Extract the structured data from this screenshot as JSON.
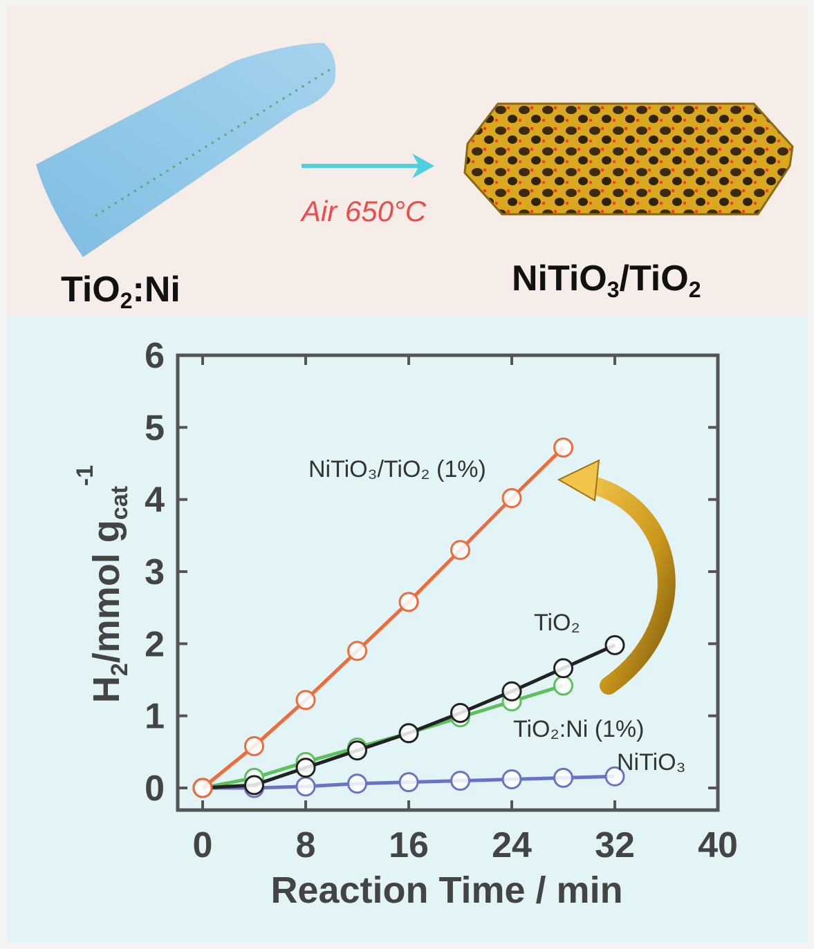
{
  "schematic": {
    "left_label": {
      "main": "TiO",
      "sub": "2",
      "tail": ":Ni"
    },
    "right_label": {
      "main1": "NiTiO",
      "sub1": "3",
      "mid": "/TiO",
      "sub2": "2"
    },
    "condition": "Air 650°C",
    "colors": {
      "nanorod": "#8ec6e6",
      "arrow": "#4fd0e0",
      "condition_text": "#f04a4a",
      "particle": "#d8a020",
      "pores": "#3a2a10",
      "dots": "#ff3030"
    }
  },
  "chart_data": {
    "type": "line",
    "xlabel": "Reaction Time / min",
    "ylabel": {
      "main": "H",
      "sub1": "2",
      "mid": "/mmol g",
      "sub2": "cat",
      "sup": "-1"
    },
    "xlim": [
      0,
      40
    ],
    "ylim": [
      0,
      6
    ],
    "xticks": [
      0,
      8,
      16,
      24,
      32,
      40
    ],
    "yticks": [
      0,
      1,
      2,
      3,
      4,
      5,
      6
    ],
    "grid": false,
    "series": [
      {
        "name": "NiTiO₃/TiO₂ (1%)",
        "color": "#f26a3a",
        "x": [
          0,
          4,
          8,
          12,
          16,
          20,
          24,
          28
        ],
        "y": [
          0,
          0.58,
          1.22,
          1.9,
          2.58,
          3.3,
          4.02,
          4.72
        ]
      },
      {
        "name": "TiO₂",
        "color": "#222222",
        "x": [
          0,
          4,
          8,
          12,
          16,
          20,
          24,
          28,
          32
        ],
        "y": [
          0,
          0.04,
          0.28,
          0.52,
          0.76,
          1.04,
          1.34,
          1.66,
          1.98
        ]
      },
      {
        "name": "TiO₂:Ni (1%)",
        "color": "#5cc05c",
        "x": [
          0,
          4,
          8,
          12,
          16,
          20,
          24,
          28
        ],
        "y": [
          0,
          0.14,
          0.36,
          0.56,
          0.76,
          0.98,
          1.2,
          1.42
        ]
      },
      {
        "name": "NiTiO₃",
        "color": "#6a72c8",
        "x": [
          0,
          4,
          8,
          12,
          16,
          20,
          24,
          28,
          32
        ],
        "y": [
          0,
          0.0,
          0.02,
          0.06,
          0.08,
          0.1,
          0.12,
          0.14,
          0.16
        ]
      }
    ]
  }
}
